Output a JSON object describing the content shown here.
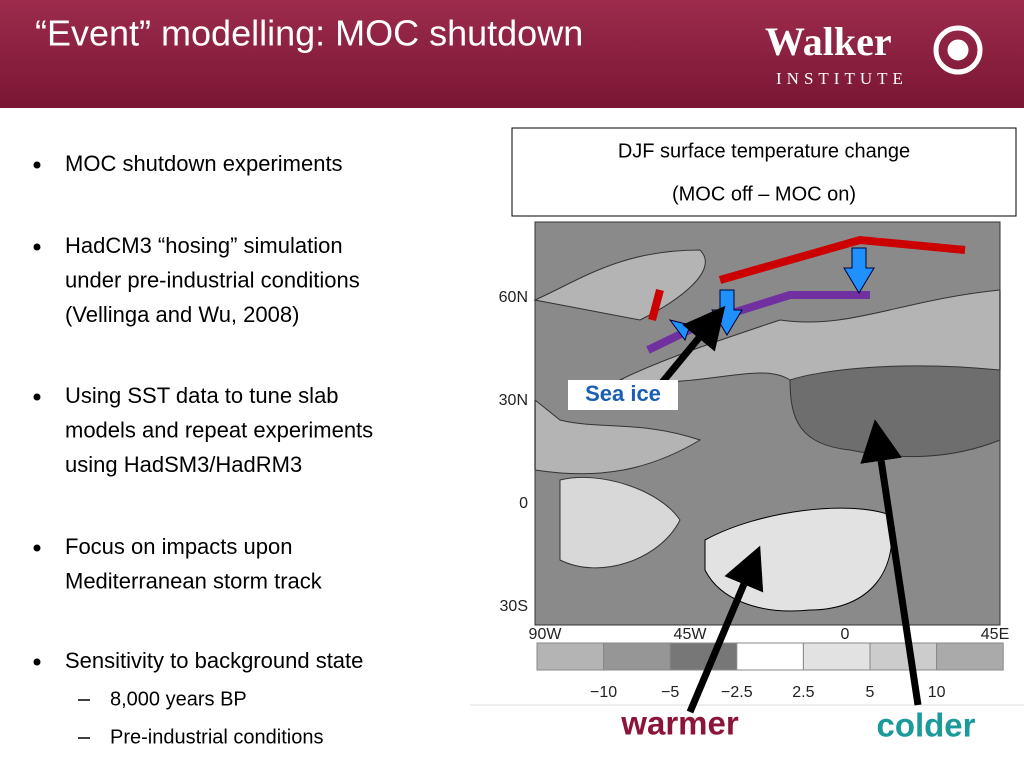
{
  "header": {
    "title": "“Event” modelling: MOC shutdown",
    "logo": {
      "name": "Walker",
      "subtitle": "INSTITUTE"
    }
  },
  "bullets": [
    {
      "lines": [
        "MOC shutdown experiments"
      ]
    },
    {
      "lines": [
        "HadCM3 “hosing” simulation",
        "under pre-industrial conditions",
        "(Vellinga and Wu, 2008)"
      ]
    },
    {
      "lines": [
        "Using SST data to tune slab",
        "models and repeat experiments",
        "using HadSM3/HadRM3"
      ]
    },
    {
      "lines": [
        "Focus on impacts upon",
        "Mediterranean storm track"
      ]
    },
    {
      "lines": [
        "Sensitivity to background state"
      ],
      "sub": [
        "8,000 years BP",
        "Pre-industrial conditions"
      ]
    }
  ],
  "figure": {
    "caption": [
      "DJF surface temperature change",
      "(MOC off – MOC on)"
    ],
    "lat_labels": [
      "60N",
      "30N",
      "0",
      "30S"
    ],
    "lon_labels": [
      "90W",
      "45W",
      "0",
      "45E"
    ],
    "colorbar_labels": [
      "−10",
      "−5",
      "−2.5",
      "2.5",
      "5",
      "10"
    ],
    "annotations": {
      "sea_ice": "Sea ice",
      "warmer": "warmer",
      "colder": "colder"
    }
  }
}
